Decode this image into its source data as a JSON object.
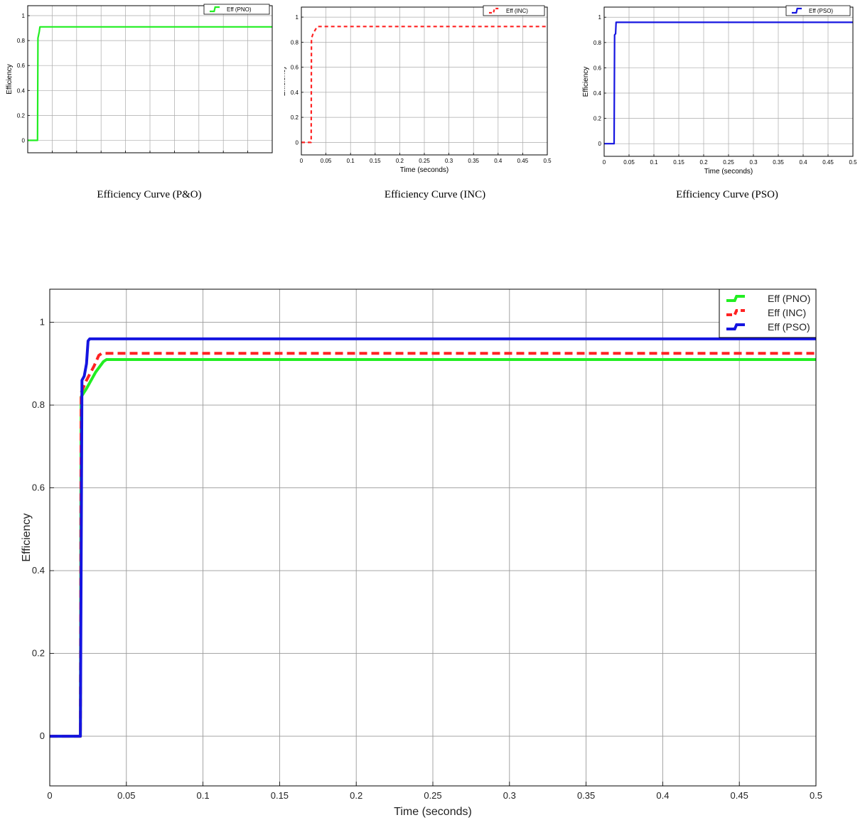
{
  "colors": {
    "pno": "#22ee22",
    "inc": "#ff2222",
    "pso": "#1515e0"
  },
  "captions": {
    "pno": "Efficiency Curve (P&O)",
    "inc": "Efficiency Curve (INC)",
    "pso": "Efficiency Curve (PSO)"
  },
  "chart_data": [
    {
      "type": "line",
      "xlabel": "",
      "ylabel": "Efficiency",
      "xlim": [
        0,
        0.5
      ],
      "ylim": [
        -0.1,
        1.08
      ],
      "grid": true,
      "legend": "top-right",
      "x_ticks": [],
      "y_ticks": [
        "0",
        "0.2",
        "0.4",
        "0.6",
        "0.8",
        "1"
      ],
      "series": [
        {
          "name": "Eff (PNO)",
          "style": "solid",
          "x": [
            0,
            0.02,
            0.021,
            0.0235,
            0.025,
            0.5
          ],
          "y": [
            0,
            0,
            0.82,
            0.87,
            0.91,
            0.91
          ]
        }
      ]
    },
    {
      "type": "line",
      "xlabel": "Time (seconds)",
      "ylabel": "Efficiency",
      "xlim": [
        0,
        0.5
      ],
      "ylim": [
        -0.1,
        1.08
      ],
      "grid": true,
      "legend": "top-right",
      "x_ticks": [
        "0",
        "0.05",
        "0.1",
        "0.15",
        "0.2",
        "0.25",
        "0.3",
        "0.35",
        "0.4",
        "0.45",
        "0.5"
      ],
      "y_ticks": [
        "0",
        "0.2",
        "0.4",
        "0.6",
        "0.8",
        "1"
      ],
      "series": [
        {
          "name": "Eff (INC)",
          "style": "dashed",
          "x": [
            0,
            0.02,
            0.0205,
            0.024,
            0.03,
            0.033,
            0.5
          ],
          "y": [
            0,
            0,
            0.83,
            0.87,
            0.91,
            0.925,
            0.925
          ]
        }
      ]
    },
    {
      "type": "line",
      "xlabel": "Time (seconds)",
      "ylabel": "Efficiency",
      "xlim": [
        0,
        0.5
      ],
      "ylim": [
        -0.1,
        1.08
      ],
      "grid": true,
      "legend": "top-right",
      "x_ticks": [
        "0",
        "0.05",
        "0.1",
        "0.15",
        "0.2",
        "0.25",
        "0.3",
        "0.35",
        "0.4",
        "0.45",
        "0.5"
      ],
      "y_ticks": [
        "0",
        "0.2",
        "0.4",
        "0.6",
        "0.8",
        "1"
      ],
      "series": [
        {
          "name": "Eff (PSO)",
          "style": "solid",
          "x": [
            0,
            0.02,
            0.021,
            0.023,
            0.024,
            0.5
          ],
          "y": [
            0,
            0,
            0.86,
            0.87,
            0.96,
            0.96
          ]
        }
      ]
    },
    {
      "type": "line",
      "xlabel": "Time (seconds)",
      "ylabel": "Efficiency",
      "xlim": [
        0,
        0.5
      ],
      "ylim": [
        -0.12,
        1.08
      ],
      "grid": true,
      "legend": "top-right",
      "x_ticks": [
        "0",
        "0.05",
        "0.1",
        "0.15",
        "0.2",
        "0.25",
        "0.3",
        "0.35",
        "0.4",
        "0.45",
        "0.5"
      ],
      "y_ticks": [
        "0",
        "0.2",
        "0.4",
        "0.6",
        "0.8",
        "1"
      ],
      "series": [
        {
          "name": "Eff (PNO)",
          "style": "solid",
          "x": [
            0,
            0.02,
            0.0205,
            0.024,
            0.03,
            0.035,
            0.037,
            0.5
          ],
          "y": [
            0,
            0,
            0.82,
            0.84,
            0.88,
            0.905,
            0.91,
            0.91
          ]
        },
        {
          "name": "Eff (INC)",
          "style": "dashed",
          "x": [
            0,
            0.02,
            0.0205,
            0.024,
            0.029,
            0.032,
            0.034,
            0.5
          ],
          "y": [
            0,
            0,
            0.83,
            0.86,
            0.895,
            0.92,
            0.925,
            0.925
          ]
        },
        {
          "name": "Eff (PSO)",
          "style": "solid",
          "x": [
            0,
            0.02,
            0.021,
            0.0225,
            0.024,
            0.025,
            0.026,
            0.5
          ],
          "y": [
            0,
            0,
            0.86,
            0.87,
            0.9,
            0.955,
            0.96,
            0.96
          ]
        }
      ]
    }
  ]
}
